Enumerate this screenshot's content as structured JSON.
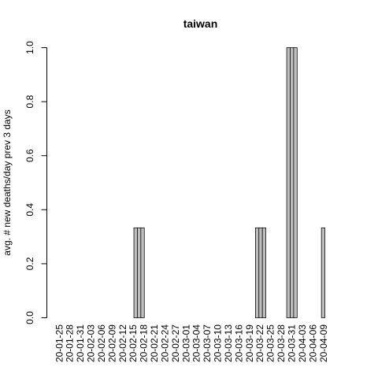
{
  "chart_data": {
    "type": "bar",
    "title": "taiwan",
    "ylabel": "avg. # new deaths/day prev  3  days",
    "xlabel": "",
    "ylim": [
      0,
      1.0
    ],
    "yticks": [
      "0.0",
      "0.2",
      "0.4",
      "0.6",
      "0.8",
      "1.0"
    ],
    "tick_labels": [
      "20-01-25",
      "20-01-28",
      "20-01-31",
      "20-02-03",
      "20-02-06",
      "20-02-09",
      "20-02-12",
      "20-02-15",
      "20-02-18",
      "20-02-21",
      "20-02-24",
      "20-02-27",
      "20-03-01",
      "20-03-04",
      "20-03-07",
      "20-03-10",
      "20-03-13",
      "20-03-16",
      "20-03-19",
      "20-03-22",
      "20-03-25",
      "20-03-28",
      "20-03-31",
      "20-04-03",
      "20-04-06",
      "20-04-09"
    ],
    "bar_color": "#bebebe",
    "categories": [
      "20-01-25",
      "20-01-26",
      "20-01-27",
      "20-01-28",
      "20-01-29",
      "20-01-30",
      "20-01-31",
      "20-02-01",
      "20-02-02",
      "20-02-03",
      "20-02-04",
      "20-02-05",
      "20-02-06",
      "20-02-07",
      "20-02-08",
      "20-02-09",
      "20-02-10",
      "20-02-11",
      "20-02-12",
      "20-02-13",
      "20-02-14",
      "20-02-15",
      "20-02-16",
      "20-02-17",
      "20-02-18",
      "20-02-19",
      "20-02-20",
      "20-02-21",
      "20-02-22",
      "20-02-23",
      "20-02-24",
      "20-02-25",
      "20-02-26",
      "20-02-27",
      "20-02-28",
      "20-02-29",
      "20-03-01",
      "20-03-02",
      "20-03-03",
      "20-03-04",
      "20-03-05",
      "20-03-06",
      "20-03-07",
      "20-03-08",
      "20-03-09",
      "20-03-10",
      "20-03-11",
      "20-03-12",
      "20-03-13",
      "20-03-14",
      "20-03-15",
      "20-03-16",
      "20-03-17",
      "20-03-18",
      "20-03-19",
      "20-03-20",
      "20-03-21",
      "20-03-22",
      "20-03-23",
      "20-03-24",
      "20-03-25",
      "20-03-26",
      "20-03-27",
      "20-03-28",
      "20-03-29",
      "20-03-30",
      "20-03-31",
      "20-04-01",
      "20-04-02",
      "20-04-03",
      "20-04-04",
      "20-04-05",
      "20-04-06",
      "20-04-07",
      "20-04-08",
      "20-04-09",
      "20-04-10"
    ],
    "values": [
      0,
      0,
      0,
      0,
      0,
      0,
      0,
      0,
      0,
      0,
      0,
      0,
      0,
      0,
      0,
      0,
      0,
      0,
      0,
      0,
      0,
      0,
      0.333,
      0.333,
      0.333,
      0,
      0,
      0,
      0,
      0,
      0,
      0,
      0,
      0,
      0,
      0,
      0,
      0,
      0,
      0,
      0,
      0,
      0,
      0,
      0,
      0,
      0,
      0,
      0,
      0,
      0,
      0,
      0,
      0,
      0,
      0,
      0,
      0.333,
      0.333,
      0.333,
      0,
      0,
      0,
      0,
      0,
      0,
      1,
      1,
      1,
      0,
      0,
      0,
      0,
      0,
      0,
      0,
      0.333
    ]
  }
}
